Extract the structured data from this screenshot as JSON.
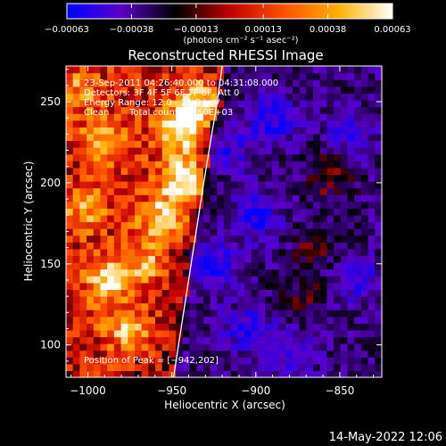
{
  "chart_data": {
    "type": "heatmap",
    "title": "Reconstructed RHESSI Image",
    "xlabel": "Heliocentric X (arcsec)",
    "ylabel": "Heliocentric Y (arcsec)",
    "xlim": [
      -1013,
      -825
    ],
    "ylim": [
      80,
      272
    ],
    "x_ticks": [
      -1000,
      -950,
      -900,
      -850
    ],
    "x_tick_labels": [
      "−1000",
      "−950",
      "−900",
      "−850"
    ],
    "y_ticks": [
      100,
      150,
      200,
      250
    ],
    "y_tick_labels": [
      "100",
      "150",
      "200",
      "250"
    ],
    "colorbar": {
      "range": [
        -0.00063,
        0.00063
      ],
      "ticks": [
        -0.00063,
        -0.00038,
        -0.00013,
        0.00013,
        0.00038,
        0.00063
      ],
      "tick_labels": [
        "−0.00063",
        "−0.00038",
        "−0.00013",
        "0.00013",
        "0.00038",
        "0.00063"
      ],
      "unit_label": "(photons cm⁻² s⁻¹ asec⁻²)",
      "colors": [
        "#0000ff",
        "#5a00c8",
        "#000000",
        "#c00000",
        "#ff5000",
        "#ffb000",
        "#ffffff"
      ]
    },
    "annotations": {
      "time": "23-Sep-2011 04:26:40.000 to 04:31:08.000",
      "detectors": "Detectors: 3F 4F 5F 6F 7F 8F, Att 0",
      "energy": "Energy Range: 12.0 - 25.0 keV",
      "method": "Clean",
      "counts": "Total counts: 9.60E+03",
      "peak": "Position of Peak = [−942,202]"
    },
    "limb_curve": [
      [
        -949,
        80
      ],
      [
        -940,
        140
      ],
      [
        -931,
        200
      ],
      [
        -923,
        250
      ],
      [
        -920,
        272
      ]
    ],
    "hot_spots": [
      {
        "x": -942,
        "y": 202,
        "value": 0.00063
      },
      {
        "x": -944,
        "y": 232,
        "value": 0.00055
      },
      {
        "x": -933,
        "y": 250,
        "value": 0.0005
      },
      {
        "x": -955,
        "y": 178,
        "value": 0.00045
      },
      {
        "x": -990,
        "y": 225,
        "value": 0.00038
      },
      {
        "x": -1002,
        "y": 185,
        "value": 0.0003
      },
      {
        "x": -988,
        "y": 140,
        "value": 0.0004
      },
      {
        "x": -975,
        "y": 110,
        "value": 0.00035
      },
      {
        "x": -965,
        "y": 150,
        "value": 0.0003
      },
      {
        "x": -1005,
        "y": 258,
        "value": 0.00025
      },
      {
        "x": -855,
        "y": 205,
        "value": 0.0003
      },
      {
        "x": -863,
        "y": 160,
        "value": 0.00022
      },
      {
        "x": -870,
        "y": 130,
        "value": 0.00018
      }
    ],
    "cold_spots": [
      {
        "x": -925,
        "y": 150,
        "value": -0.00045
      },
      {
        "x": -900,
        "y": 180,
        "value": -0.0004
      },
      {
        "x": -905,
        "y": 110,
        "value": -0.00035
      },
      {
        "x": -890,
        "y": 240,
        "value": -0.0004
      },
      {
        "x": -840,
        "y": 140,
        "value": -0.00035
      },
      {
        "x": -915,
        "y": 220,
        "value": -0.0003
      },
      {
        "x": -880,
        "y": 95,
        "value": -0.0003
      },
      {
        "x": -845,
        "y": 230,
        "value": -0.0003
      }
    ]
  },
  "footer": {
    "timestamp": "14-May-2022 12:06"
  }
}
